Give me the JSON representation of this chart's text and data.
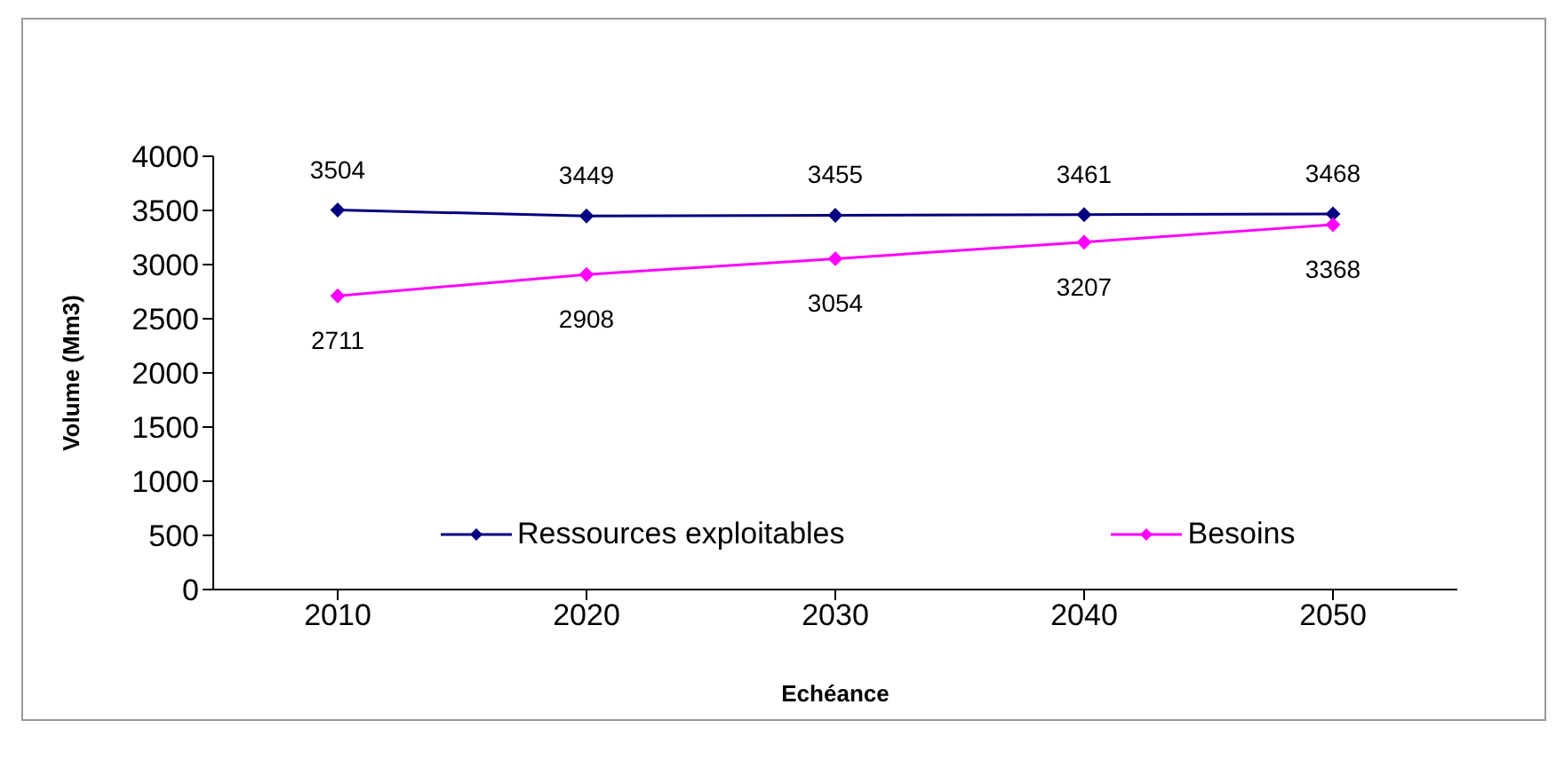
{
  "chart_data": {
    "type": "line",
    "xlabel": "Echéance",
    "ylabel": "Volume  (Mm3)",
    "categories": [
      "2010",
      "2020",
      "2030",
      "2040",
      "2050"
    ],
    "series": [
      {
        "name": "Ressources exploitables",
        "color": "#000080",
        "values": [
          3504,
          3449,
          3455,
          3461,
          3468
        ]
      },
      {
        "name": "Besoins",
        "color": "#ff00ff",
        "values": [
          2711,
          2908,
          3054,
          3207,
          3368
        ]
      }
    ],
    "ylim": [
      0,
      4000
    ],
    "yticks": [
      0,
      500,
      1000,
      1500,
      2000,
      2500,
      3000,
      3500,
      4000
    ],
    "grid": false,
    "legend": "bottom",
    "marker": "diamond",
    "line_style": "solid",
    "data_labels": true
  }
}
